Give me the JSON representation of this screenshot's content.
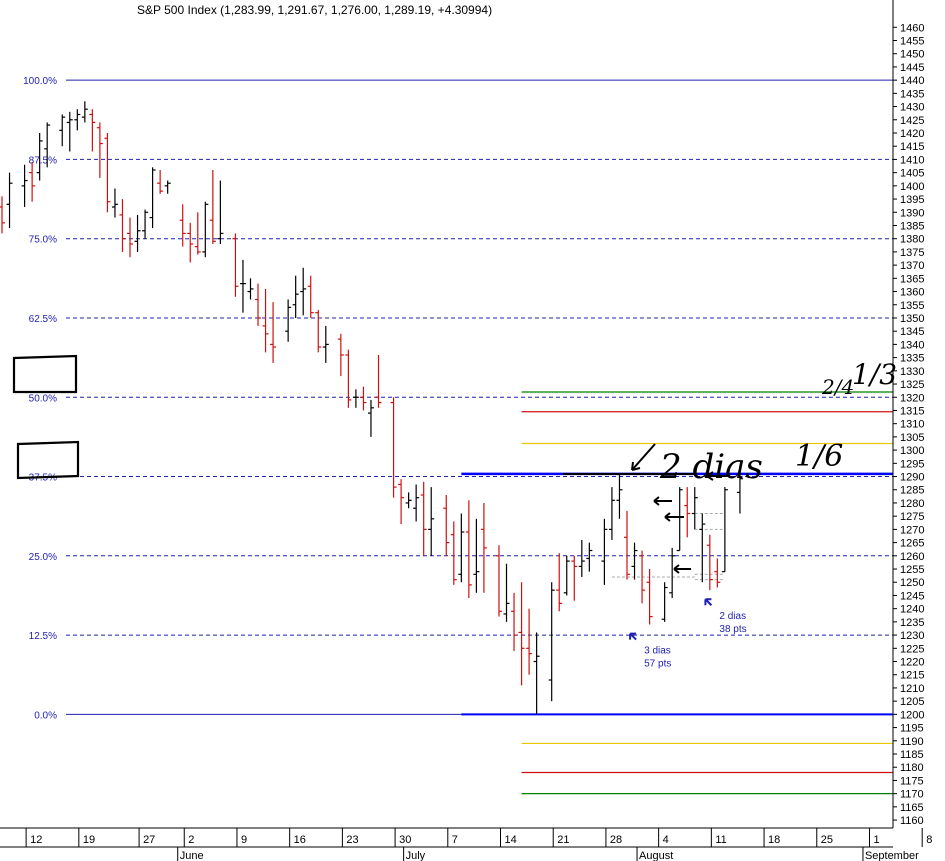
{
  "chart_data": {
    "type": "ohlc",
    "title": "S&P 500 Index (1,283.99, 1,291.67, 1,276.00, 1,289.19, +4.30994)",
    "ylim": [
      1157,
      1462
    ],
    "y_ticks": [
      1160,
      1165,
      1170,
      1175,
      1180,
      1185,
      1190,
      1195,
      1200,
      1205,
      1210,
      1215,
      1220,
      1225,
      1230,
      1235,
      1240,
      1245,
      1250,
      1255,
      1260,
      1265,
      1270,
      1275,
      1280,
      1285,
      1290,
      1295,
      1300,
      1305,
      1310,
      1315,
      1320,
      1325,
      1330,
      1335,
      1340,
      1345,
      1350,
      1355,
      1360,
      1365,
      1370,
      1375,
      1380,
      1385,
      1390,
      1395,
      1400,
      1405,
      1410,
      1415,
      1420,
      1425,
      1430,
      1435,
      1440,
      1445,
      1450,
      1455,
      1460
    ],
    "x_ticks": [
      {
        "label": "12",
        "day": 12
      },
      {
        "label": "19",
        "day": 19
      },
      {
        "label": "27",
        "day": 27
      },
      {
        "label": "2",
        "day": 33
      },
      {
        "label": "9",
        "day": 40
      },
      {
        "label": "16",
        "day": 47
      },
      {
        "label": "23",
        "day": 54
      },
      {
        "label": "30",
        "day": 61
      },
      {
        "label": "7",
        "day": 68
      },
      {
        "label": "14",
        "day": 75
      },
      {
        "label": "21",
        "day": 82
      },
      {
        "label": "28",
        "day": 89
      },
      {
        "label": "4",
        "day": 96
      },
      {
        "label": "11",
        "day": 103
      },
      {
        "label": "18",
        "day": 110
      },
      {
        "label": "25",
        "day": 117
      },
      {
        "label": "1",
        "day": 124
      },
      {
        "label": "8",
        "day": 131
      }
    ],
    "months": [
      {
        "label": "June",
        "day": 32
      },
      {
        "label": "July",
        "day": 62
      },
      {
        "label": "August",
        "day": 93
      },
      {
        "label": "September",
        "day": 123
      }
    ],
    "fib_levels": [
      {
        "label": "100.0%",
        "value": 1440
      },
      {
        "label": "87.5%",
        "value": 1410
      },
      {
        "label": "75.0%",
        "value": 1380
      },
      {
        "label": "62.5%",
        "value": 1350
      },
      {
        "label": "50.0%",
        "value": 1320
      },
      {
        "label": "37.5%",
        "value": 1290
      },
      {
        "label": "25.0%",
        "value": 1260
      },
      {
        "label": "12.5%",
        "value": 1230
      },
      {
        "label": "0.0%",
        "value": 1200
      }
    ],
    "hlines": [
      {
        "y": 1322,
        "color": "#008000",
        "from_day": 77
      },
      {
        "y": 1314.5,
        "color": "#d01010",
        "from_day": 77
      },
      {
        "y": 1302.5,
        "color": "#e8c800",
        "from_day": 77
      },
      {
        "y": 1291,
        "color": "#0000ff",
        "from_day": 69,
        "width": 2.5
      },
      {
        "y": 1200,
        "color": "#0000ff",
        "from_day": 69,
        "width": 2
      },
      {
        "y": 1189,
        "color": "#e8c800",
        "from_day": 77
      },
      {
        "y": 1178,
        "color": "#d01010",
        "from_day": 77
      },
      {
        "y": 1170,
        "color": "#008000",
        "from_day": 77
      }
    ],
    "bars": [
      {
        "day": 8,
        "o": 1392,
        "h": 1396,
        "l": 1382,
        "c": 1386
      },
      {
        "day": 9,
        "o": 1393,
        "h": 1405,
        "l": 1384,
        "c": 1401
      },
      {
        "day": 11,
        "o": 1400,
        "h": 1408,
        "l": 1392,
        "c": 1402
      },
      {
        "day": 12,
        "o": 1405,
        "h": 1409,
        "l": 1394,
        "c": 1400
      },
      {
        "day": 13,
        "o": 1405,
        "h": 1420,
        "l": 1402,
        "c": 1417
      },
      {
        "day": 14,
        "o": 1414,
        "h": 1424,
        "l": 1407,
        "c": 1423
      },
      {
        "day": 16,
        "o": 1421,
        "h": 1427,
        "l": 1415,
        "c": 1426
      },
      {
        "day": 17,
        "o": 1424,
        "h": 1428,
        "l": 1413,
        "c": 1425
      },
      {
        "day": 18,
        "o": 1425,
        "h": 1429,
        "l": 1421,
        "c": 1427
      },
      {
        "day": 19,
        "o": 1426,
        "h": 1432,
        "l": 1424,
        "c": 1429
      },
      {
        "day": 20,
        "o": 1427,
        "h": 1429,
        "l": 1413,
        "c": 1424
      },
      {
        "day": 21,
        "o": 1422,
        "h": 1424,
        "l": 1403,
        "c": 1416
      },
      {
        "day": 22,
        "o": 1418,
        "h": 1420,
        "l": 1390,
        "c": 1394
      },
      {
        "day": 23,
        "o": 1392,
        "h": 1399,
        "l": 1388,
        "c": 1393
      },
      {
        "day": 24,
        "o": 1389,
        "h": 1395,
        "l": 1375,
        "c": 1380
      },
      {
        "day": 25,
        "o": 1382,
        "h": 1388,
        "l": 1373,
        "c": 1378
      },
      {
        "day": 26,
        "o": 1379,
        "h": 1389,
        "l": 1375,
        "c": 1383
      },
      {
        "day": 27,
        "o": 1383,
        "h": 1391,
        "l": 1380,
        "c": 1390
      },
      {
        "day": 28,
        "o": 1388,
        "h": 1407,
        "l": 1384,
        "c": 1406
      },
      {
        "day": 29,
        "o": 1401,
        "h": 1406,
        "l": 1397,
        "c": 1398
      },
      {
        "day": 30,
        "o": 1400,
        "h": 1402,
        "l": 1397,
        "c": 1401
      },
      {
        "day": 32,
        "o": 1387,
        "h": 1393,
        "l": 1377,
        "c": 1382
      },
      {
        "day": 33,
        "o": 1382,
        "h": 1386,
        "l": 1371,
        "c": 1378
      },
      {
        "day": 34,
        "o": 1377,
        "h": 1390,
        "l": 1374,
        "c": 1375
      },
      {
        "day": 35,
        "o": 1375,
        "h": 1394,
        "l": 1373,
        "c": 1393
      },
      {
        "day": 36,
        "o": 1387,
        "h": 1406,
        "l": 1378,
        "c": 1379
      },
      {
        "day": 37,
        "o": 1380,
        "h": 1402,
        "l": 1378,
        "c": 1382
      },
      {
        "day": 39,
        "o": 1380,
        "h": 1382,
        "l": 1358,
        "c": 1362
      },
      {
        "day": 40,
        "o": 1363,
        "h": 1372,
        "l": 1352,
        "c": 1363
      },
      {
        "day": 41,
        "o": 1360,
        "h": 1365,
        "l": 1357,
        "c": 1361
      },
      {
        "day": 42,
        "o": 1357,
        "h": 1363,
        "l": 1347,
        "c": 1350
      },
      {
        "day": 43,
        "o": 1347,
        "h": 1361,
        "l": 1337,
        "c": 1344
      },
      {
        "day": 44,
        "o": 1340,
        "h": 1356,
        "l": 1333,
        "c": 1339
      },
      {
        "day": 46,
        "o": 1345,
        "h": 1357,
        "l": 1341,
        "c": 1354
      },
      {
        "day": 47,
        "o": 1355,
        "h": 1366,
        "l": 1350,
        "c": 1359
      },
      {
        "day": 48,
        "o": 1360,
        "h": 1369,
        "l": 1351,
        "c": 1361
      },
      {
        "day": 49,
        "o": 1362,
        "h": 1366,
        "l": 1350,
        "c": 1352
      },
      {
        "day": 50,
        "o": 1352,
        "h": 1353,
        "l": 1337,
        "c": 1339
      },
      {
        "day": 51,
        "o": 1339,
        "h": 1347,
        "l": 1333,
        "c": 1340
      },
      {
        "day": 53,
        "o": 1342,
        "h": 1344,
        "l": 1328,
        "c": 1336
      },
      {
        "day": 54,
        "o": 1336,
        "h": 1338,
        "l": 1316,
        "c": 1319
      },
      {
        "day": 55,
        "o": 1320,
        "h": 1323,
        "l": 1316,
        "c": 1320
      },
      {
        "day": 56,
        "o": 1320,
        "h": 1324,
        "l": 1315,
        "c": 1318
      },
      {
        "day": 57,
        "o": 1314,
        "h": 1319,
        "l": 1305,
        "c": 1316
      },
      {
        "day": 58,
        "o": 1320,
        "h": 1336,
        "l": 1316,
        "c": 1318
      },
      {
        "day": 60,
        "o": 1318,
        "h": 1320,
        "l": 1282,
        "c": 1286
      },
      {
        "day": 61,
        "o": 1287,
        "h": 1289,
        "l": 1272,
        "c": 1282
      },
      {
        "day": 62,
        "o": 1280,
        "h": 1284,
        "l": 1278,
        "c": 1281
      },
      {
        "day": 63,
        "o": 1278,
        "h": 1287,
        "l": 1273,
        "c": 1282
      },
      {
        "day": 64,
        "o": 1283,
        "h": 1288,
        "l": 1260,
        "c": 1270
      },
      {
        "day": 65,
        "o": 1270,
        "h": 1286,
        "l": 1260,
        "c": 1274
      },
      {
        "day": 67,
        "o": 1278,
        "h": 1283,
        "l": 1260,
        "c": 1265
      },
      {
        "day": 68,
        "o": 1268,
        "h": 1273,
        "l": 1249,
        "c": 1251
      },
      {
        "day": 69,
        "o": 1253,
        "h": 1276,
        "l": 1250,
        "c": 1269
      },
      {
        "day": 70,
        "o": 1269,
        "h": 1281,
        "l": 1244,
        "c": 1249
      },
      {
        "day": 71,
        "o": 1253,
        "h": 1274,
        "l": 1246,
        "c": 1254
      },
      {
        "day": 72,
        "o": 1270,
        "h": 1280,
        "l": 1246,
        "c": 1263
      },
      {
        "day": 74,
        "o": 1260,
        "h": 1264,
        "l": 1237,
        "c": 1239
      },
      {
        "day": 75,
        "o": 1238,
        "h": 1257,
        "l": 1235,
        "c": 1242
      },
      {
        "day": 76,
        "o": 1239,
        "h": 1246,
        "l": 1224,
        "c": 1230
      },
      {
        "day": 77,
        "o": 1231,
        "h": 1250,
        "l": 1211,
        "c": 1225
      },
      {
        "day": 78,
        "o": 1225,
        "h": 1240,
        "l": 1215,
        "c": 1223
      },
      {
        "day": 79,
        "o": 1220,
        "h": 1231,
        "l": 1200,
        "c": 1222
      },
      {
        "day": 81,
        "o": 1213,
        "h": 1250,
        "l": 1205,
        "c": 1247
      },
      {
        "day": 82,
        "o": 1247,
        "h": 1261,
        "l": 1239,
        "c": 1242
      },
      {
        "day": 83,
        "o": 1246,
        "h": 1260,
        "l": 1245,
        "c": 1258
      },
      {
        "day": 84,
        "o": 1258,
        "h": 1260,
        "l": 1243,
        "c": 1256
      },
      {
        "day": 85,
        "o": 1256,
        "h": 1266,
        "l": 1252,
        "c": 1258
      },
      {
        "day": 86,
        "o": 1259,
        "h": 1265,
        "l": 1254,
        "c": 1262
      },
      {
        "day": 88,
        "o": 1258,
        "h": 1274,
        "l": 1249,
        "c": 1270
      },
      {
        "day": 89,
        "o": 1270,
        "h": 1286,
        "l": 1266,
        "c": 1281
      },
      {
        "day": 90,
        "o": 1281,
        "h": 1291,
        "l": 1274,
        "c": 1285
      },
      {
        "day": 91,
        "o": 1267,
        "h": 1277,
        "l": 1251,
        "c": 1253
      },
      {
        "day": 92,
        "o": 1256,
        "h": 1265,
        "l": 1251,
        "c": 1262
      },
      {
        "day": 93,
        "o": 1260,
        "h": 1262,
        "l": 1242,
        "c": 1247
      },
      {
        "day": 94,
        "o": 1250,
        "h": 1255,
        "l": 1234,
        "c": 1237
      },
      {
        "day": 96,
        "o": 1236,
        "h": 1250,
        "l": 1235,
        "c": 1248
      },
      {
        "day": 97,
        "o": 1246,
        "h": 1263,
        "l": 1244,
        "c": 1260
      },
      {
        "day": 98,
        "o": 1262,
        "h": 1286,
        "l": 1262,
        "c": 1285
      },
      {
        "day": 99,
        "o": 1279,
        "h": 1286,
        "l": 1267,
        "c": 1276
      },
      {
        "day": 100,
        "o": 1276,
        "h": 1286,
        "l": 1270,
        "c": 1282
      },
      {
        "day": 101,
        "o": 1270,
        "h": 1276,
        "l": 1250,
        "c": 1272
      },
      {
        "day": 102,
        "o": 1264,
        "h": 1268,
        "l": 1247,
        "c": 1251
      },
      {
        "day": 103,
        "o": 1254,
        "h": 1259,
        "l": 1248,
        "c": 1250
      },
      {
        "day": 104,
        "o": 1254,
        "h": 1286,
        "l": 1254,
        "c": 1285
      },
      {
        "day": 106,
        "o": 1284,
        "h": 1291.67,
        "l": 1276,
        "c": 1289.19
      }
    ],
    "annotations": [
      {
        "lines": [
          "3 dias",
          "57 pts"
        ],
        "day": 95,
        "y": 1223
      },
      {
        "lines": [
          "2 dias",
          "38 pts"
        ],
        "day": 105,
        "y": 1236
      }
    ],
    "handwriting": {
      "main": "2 dias",
      "fraction_a": "1/6",
      "fraction_b": "1/3",
      "fraction_c": "2/4"
    }
  }
}
